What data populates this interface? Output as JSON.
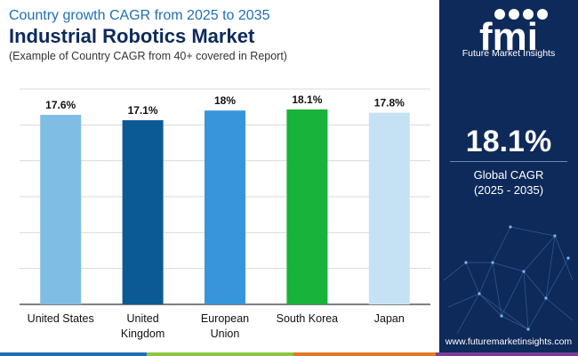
{
  "header": {
    "subtitle": "Country growth CAGR from 2025 to 2035",
    "title": "Industrial Robotics Market",
    "note": "(Example of Country CAGR from 40+ covered in Report)"
  },
  "chart_data": {
    "type": "bar",
    "categories": [
      "United States",
      "United Kingdom",
      "European Union",
      "South Korea",
      "Japan"
    ],
    "category_lines": [
      [
        "United States"
      ],
      [
        "United",
        "Kingdom"
      ],
      [
        "European",
        "Union"
      ],
      [
        "South Korea"
      ],
      [
        "Japan"
      ]
    ],
    "values": [
      17.6,
      17.1,
      18,
      18.1,
      17.8
    ],
    "labels": [
      "17.6%",
      "17.1%",
      "18%",
      "18.1%",
      "17.8%"
    ],
    "colors": [
      "#7fbde4",
      "#0b5a96",
      "#3895db",
      "#17b33a",
      "#c5e2f5"
    ],
    "ylim": [
      0,
      20
    ],
    "grid": true
  },
  "sidebar": {
    "logo_letters": "fmi",
    "logo_text": "Future Market Insights",
    "kpi_value": "18.1%",
    "kpi_label": "Global CAGR",
    "kpi_period": "(2025 - 2035)",
    "website": "www.futuremarketinsights.com"
  },
  "colors": {
    "sidebar_bg": "#0e2a5a",
    "title": "#0d2a5c",
    "subtitle": "#1f6fb5",
    "bottom_bar": [
      "#1f6fb5",
      "#8dc63f",
      "#e07b24",
      "#7b3f98"
    ]
  }
}
